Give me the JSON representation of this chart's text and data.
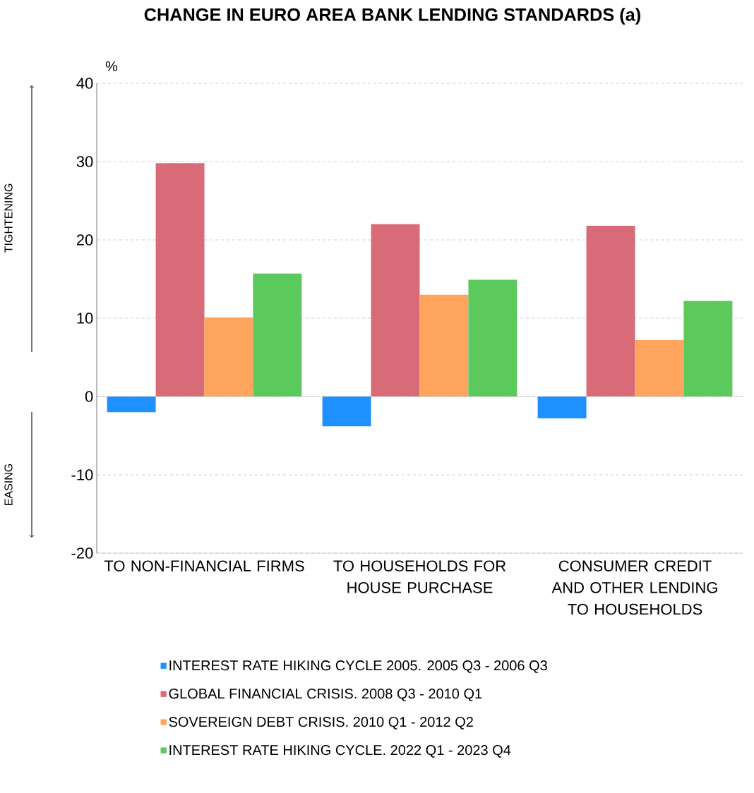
{
  "chart_data": {
    "type": "bar",
    "title": "CHANGE IN EURO AREA BANK LENDING STANDARDS (a)",
    "categories": [
      "TO NON-FINANCIAL FIRMS",
      "TO HOUSEHOLDS FOR HOUSE PURCHASE",
      "CONSUMER CREDIT AND OTHER LENDING TO HOUSEHOLDS"
    ],
    "series": [
      {
        "name": "INTEREST RATE HIKING CYCLE 2005. 2005 Q3 - 2006 Q3",
        "color": "#1e90ff",
        "values": [
          -2.0,
          -3.8,
          -2.8
        ]
      },
      {
        "name": "GLOBAL FINANCIAL CRISIS. 2008 Q3 - 2010 Q1",
        "color": "#d96b79",
        "values": [
          29.8,
          22.0,
          21.8
        ]
      },
      {
        "name": "SOVEREIGN DEBT CRISIS.  2010 Q1 - 2012 Q2",
        "color": "#ffa45c",
        "values": [
          10.1,
          13.0,
          7.2
        ]
      },
      {
        "name": "INTEREST RATE HIKING CYCLE. 2022 Q1 - 2023 Q4",
        "color": "#5cc95c",
        "values": [
          15.7,
          14.9,
          12.2
        ]
      }
    ],
    "ylim": [
      -20,
      40
    ],
    "yticks": [
      -20,
      -10,
      0,
      10,
      20,
      30,
      40
    ],
    "grid": "y",
    "legend": "bottom",
    "annotations": [
      "%",
      "TIGHTENING",
      "EASING"
    ]
  }
}
